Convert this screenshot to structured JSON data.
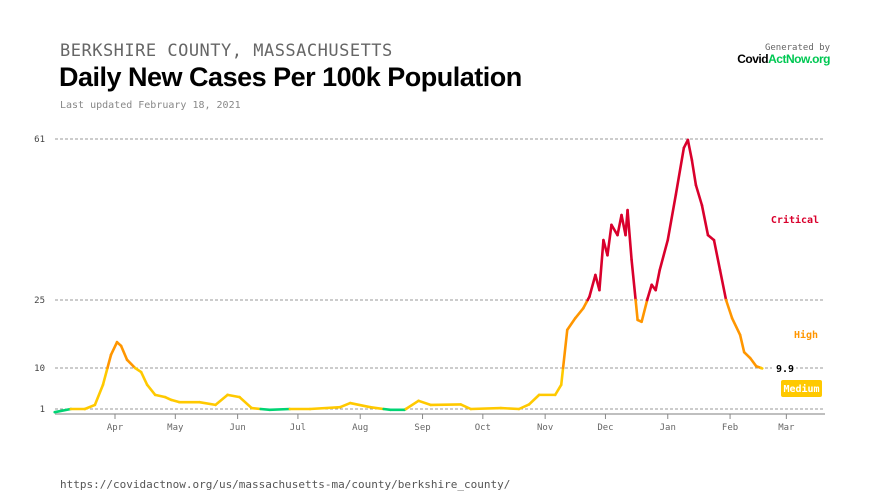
{
  "header": {
    "subtitle": "BERKSHIRE COUNTY, MASSACHUSETTS",
    "title": "Daily New Cases Per 100k Population",
    "last_updated": "Last updated February 18, 2021",
    "generated_by": "Generated by",
    "brand_a": "Covid",
    "brand_b": "ActNow.org"
  },
  "footer": {
    "url": "https://covidactnow.org/us/massachusetts-ma/county/berkshire_county/"
  },
  "chart_data": {
    "type": "line",
    "title": "Daily New Cases Per 100k Population",
    "x_unit": "days since 2020-03-01",
    "start_date": "2020-03-01",
    "y_ticks": [
      1,
      10,
      25,
      61
    ],
    "y_tick_labels": [
      "1",
      "10",
      "25",
      "61"
    ],
    "x_ticks": [
      {
        "day": 31,
        "label": "Apr"
      },
      {
        "day": 61,
        "label": "May"
      },
      {
        "day": 92,
        "label": "Jun"
      },
      {
        "day": 122,
        "label": "Jul"
      },
      {
        "day": 153,
        "label": "Aug"
      },
      {
        "day": 184,
        "label": "Sep"
      },
      {
        "day": 214,
        "label": "Oct"
      },
      {
        "day": 245,
        "label": "Nov"
      },
      {
        "day": 275,
        "label": "Dec"
      },
      {
        "day": 306,
        "label": "Jan"
      },
      {
        "day": 337,
        "label": "Feb"
      },
      {
        "day": 365,
        "label": "Mar"
      }
    ],
    "thresholds": [
      {
        "max": 1,
        "color": "#00d474"
      },
      {
        "max": 10,
        "color": "#ffc900",
        "label": "Medium"
      },
      {
        "max": 25,
        "color": "#ff9600",
        "label": "High"
      },
      {
        "max": 1000,
        "color": "#d9002c",
        "label": "Critical"
      }
    ],
    "last_value_label": "9.9",
    "points": [
      [
        1,
        0.2
      ],
      [
        9,
        1
      ],
      [
        16,
        1
      ],
      [
        21,
        1.9
      ],
      [
        25,
        6.3
      ],
      [
        29,
        12.9
      ],
      [
        32,
        15.7
      ],
      [
        34,
        14.9
      ],
      [
        37,
        11.8
      ],
      [
        41,
        10
      ],
      [
        44,
        9.1
      ],
      [
        47,
        6.3
      ],
      [
        51,
        4.1
      ],
      [
        56,
        3.6
      ],
      [
        59,
        3
      ],
      [
        63,
        2.5
      ],
      [
        73,
        2.5
      ],
      [
        81,
        1.9
      ],
      [
        87,
        4.1
      ],
      [
        93,
        3.6
      ],
      [
        99,
        1.2
      ],
      [
        108,
        0.8
      ],
      [
        118,
        1
      ],
      [
        128,
        1
      ],
      [
        143,
        1.4
      ],
      [
        148,
        2.3
      ],
      [
        158,
        1.4
      ],
      [
        168,
        0.8
      ],
      [
        175,
        0.8
      ],
      [
        182,
        2.8
      ],
      [
        188,
        1.9
      ],
      [
        203,
        2
      ],
      [
        208,
        1
      ],
      [
        223,
        1.2
      ],
      [
        232,
        1
      ],
      [
        237,
        2
      ],
      [
        242,
        4.1
      ],
      [
        250,
        4.1
      ],
      [
        253,
        6.3
      ],
      [
        256,
        18.4
      ],
      [
        260,
        21
      ],
      [
        264,
        23.2
      ],
      [
        267,
        25.7
      ],
      [
        270,
        30.6
      ],
      [
        272,
        27.2
      ],
      [
        274,
        38.4
      ],
      [
        276,
        35
      ],
      [
        278,
        41.8
      ],
      [
        281,
        39.5
      ],
      [
        283,
        44
      ],
      [
        285,
        39.5
      ],
      [
        286,
        45.1
      ],
      [
        288,
        34
      ],
      [
        291,
        20.6
      ],
      [
        293,
        20.2
      ],
      [
        296,
        25.4
      ],
      [
        298,
        28.4
      ],
      [
        300,
        27.2
      ],
      [
        302,
        31.7
      ],
      [
        306,
        38.4
      ],
      [
        310,
        48.5
      ],
      [
        314,
        59
      ],
      [
        316,
        60.8
      ],
      [
        318,
        56.3
      ],
      [
        320,
        50.7
      ],
      [
        323,
        46.2
      ],
      [
        326,
        39.5
      ],
      [
        329,
        38.4
      ],
      [
        332,
        31.7
      ],
      [
        335,
        25
      ],
      [
        338,
        21
      ],
      [
        342,
        17.3
      ],
      [
        344,
        13.5
      ],
      [
        347,
        12.2
      ],
      [
        350,
        10.4
      ],
      [
        353,
        9.9
      ]
    ]
  }
}
